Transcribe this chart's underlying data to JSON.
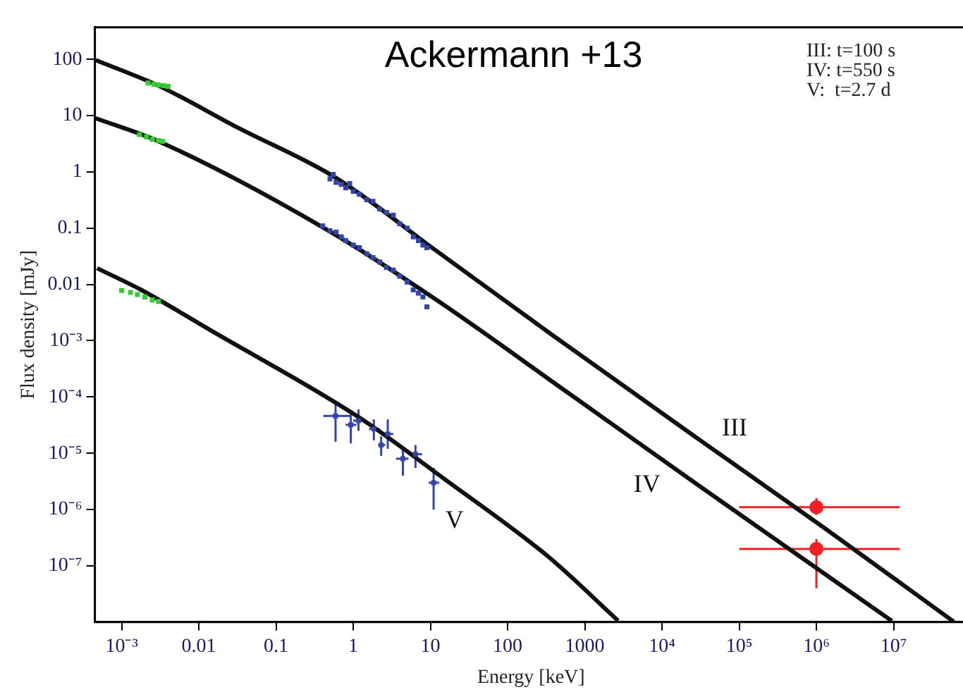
{
  "chart_data": {
    "type": "line",
    "title": "Ackermann +13",
    "xlabel": "Energy [keV]",
    "ylabel": "Flux density [mJy]",
    "log": "xy",
    "grid": false,
    "legend": false,
    "xlim": [
      0.00045,
      90000000
    ],
    "ylim": [
      1e-08,
      370
    ],
    "xticks": [
      {
        "value": 0.001,
        "label": "10⁻³"
      },
      0.01,
      0.1,
      1,
      10,
      100,
      1000,
      {
        "value": 10000,
        "label": "10⁴"
      },
      {
        "value": 100000,
        "label": "10⁵"
      },
      {
        "value": 1000000,
        "label": "10⁶"
      },
      {
        "value": 10000000,
        "label": "10⁷"
      }
    ],
    "yticks": [
      100,
      10,
      1,
      0.1,
      0.01,
      {
        "value": 0.001,
        "label": "10⁻³"
      },
      {
        "value": 0.0001,
        "label": "10⁻⁴"
      },
      {
        "value": 1e-05,
        "label": "10⁻⁵"
      },
      {
        "value": 1e-06,
        "label": "10⁻⁶"
      },
      {
        "value": 1e-07,
        "label": "10⁻⁷"
      }
    ],
    "annotations": [
      "III: t=100 s",
      "IV: t=550 s",
      "V:  t=2.7 d"
    ],
    "series": [
      {
        "name": "III",
        "color": "#111111",
        "marker": "none",
        "x": [
          0.00046,
          0.003,
          0.032,
          0.59,
          11.5,
          380,
          32000,
          1170000,
          60000000
        ],
        "values": [
          97,
          34,
          6.1,
          0.79,
          0.041,
          0.00126,
          1.66e-05,
          5.1e-07,
          1.02e-08
        ]
      },
      {
        "name": "IV",
        "color": "#111111",
        "marker": "none",
        "x": [
          0.00046,
          0.003,
          0.45,
          11.5,
          600,
          32000,
          9500000
        ],
        "values": [
          9,
          3.5,
          0.095,
          0.0055,
          0.00012,
          2.5e-06,
          1.05e-08
        ]
      },
      {
        "name": "V",
        "color": "#111111",
        "marker": "none",
        "x": [
          0.00048,
          0.00173,
          0.0147,
          1.17,
          15.8,
          335,
          2700
        ],
        "values": [
          0.0194,
          0.0082,
          0.00149,
          4.4e-05,
          3.35e-06,
          1.46e-07,
          1.06e-08
        ]
      },
      {
        "type": "scatter",
        "color": "#33cc33",
        "marker": "square",
        "x": [
          0.0022,
          0.0026,
          0.003,
          0.0035,
          0.004
        ],
        "values": [
          38,
          36,
          35,
          34,
          33
        ]
      },
      {
        "type": "scatter",
        "color": "#33cc33",
        "marker": "square",
        "x": [
          0.0017,
          0.0021,
          0.0025,
          0.003,
          0.0034
        ],
        "values": [
          4.6,
          4.2,
          3.8,
          3.6,
          3.5
        ]
      },
      {
        "type": "scatter",
        "color": "#33cc33",
        "marker": "square",
        "x": [
          0.001,
          0.0013,
          0.0016,
          0.002,
          0.0025,
          0.003
        ],
        "values": [
          0.0078,
          0.0072,
          0.0066,
          0.006,
          0.0053,
          0.005
        ]
      },
      {
        "type": "scatter",
        "color": "#3344aa",
        "marker": "square",
        "x": [
          0.5,
          0.55,
          0.6,
          0.7,
          0.8,
          0.9,
          1,
          1.2,
          1.5,
          1.8,
          2.2,
          2.7,
          3.3,
          4,
          5,
          6,
          7,
          8,
          9
        ],
        "values": [
          0.75,
          0.9,
          0.65,
          0.6,
          0.52,
          0.62,
          0.45,
          0.4,
          0.32,
          0.3,
          0.22,
          0.19,
          0.17,
          0.12,
          0.1,
          0.07,
          0.06,
          0.05,
          0.045
        ]
      },
      {
        "type": "scatter",
        "color": "#3344aa",
        "marker": "square",
        "x": [
          0.4,
          0.5,
          0.6,
          0.7,
          0.8,
          1,
          1.2,
          1.5,
          1.8,
          2.2,
          2.7,
          3.3,
          4,
          5,
          6,
          7,
          8,
          9
        ],
        "values": [
          0.11,
          0.09,
          0.085,
          0.07,
          0.06,
          0.05,
          0.045,
          0.035,
          0.03,
          0.025,
          0.02,
          0.018,
          0.014,
          0.011,
          0.008,
          0.007,
          0.006,
          0.004
        ]
      },
      {
        "type": "scatter",
        "color": "#3344aa",
        "marker": "square",
        "x": [
          0.59,
          0.93,
          1.17,
          1.85,
          2.8,
          2.3,
          4.4,
          6.4,
          11
        ],
        "values": [
          4.6e-05,
          3.2e-05,
          3.8e-05,
          2.7e-05,
          2.2e-05,
          1.4e-05,
          8e-06,
          9.6e-06,
          3e-06
        ],
        "xerrors": [
          [
            0.41,
            0.93
          ],
          [
            0.8,
            1.1
          ],
          [
            1,
            1.4
          ],
          [
            1.6,
            2.2
          ],
          [
            2.4,
            3.3
          ],
          [
            2.1,
            2.6
          ],
          [
            3.6,
            5.2
          ],
          [
            5.2,
            7.8
          ],
          [
            9.5,
            13
          ]
        ],
        "errors": [
          [
            1.6e-05,
            7.8e-05
          ],
          [
            1.5e-05,
            5e-05
          ],
          [
            2.5e-05,
            6e-05
          ],
          [
            1.7e-05,
            4e-05
          ],
          [
            1.2e-05,
            4e-05
          ],
          [
            9e-06,
            2e-05
          ],
          [
            4e-06,
            1.2e-05
          ],
          [
            5.5e-06,
            1.4e-05
          ],
          [
            1e-06,
            5.5e-06
          ]
        ]
      },
      {
        "type": "scatter",
        "color": "#ee2222",
        "marker": "circle",
        "x": [
          1000000,
          1000000
        ],
        "values": [
          1.1e-06,
          2e-07
        ],
        "xerrors": [
          [
            100000,
            12000000
          ],
          [
            100000,
            12000000
          ]
        ],
        "errors": [
          [
            8e-07,
            1.6e-06
          ],
          [
            4e-08,
            3e-07
          ]
        ]
      }
    ]
  }
}
